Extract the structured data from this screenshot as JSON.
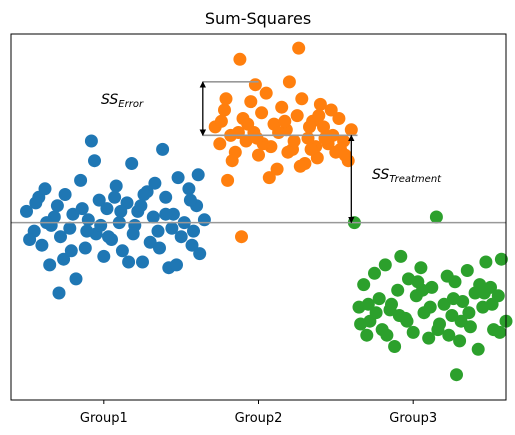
{
  "chart_data": {
    "type": "scatter",
    "title": "Sum-Squares",
    "xlabel": "",
    "ylabel": "",
    "categories": [
      "Group1",
      "Group2",
      "Group3"
    ],
    "xlim": [
      0.4,
      3.6
    ],
    "ylim": [
      -6.3,
      6.7
    ],
    "grid": false,
    "grand_mean": 0,
    "annotations": {
      "ss_error": {
        "base": "SS",
        "sub": "Error"
      },
      "ss_treatment": {
        "base": "SS",
        "sub": "Treatment"
      }
    },
    "annotation_values": {
      "group2_mean": 3.1,
      "error_point": 5.0,
      "error_arrow_x": 1.64,
      "treatment_arrow_x": 2.6
    },
    "series": [
      {
        "name": "Group1",
        "color": "#1f77b4",
        "points": [
          [
            0.5,
            0.4
          ],
          [
            0.55,
            -0.3
          ],
          [
            0.6,
            -0.8
          ],
          [
            0.58,
            0.9
          ],
          [
            0.62,
            1.2
          ],
          [
            0.65,
            -1.5
          ],
          [
            0.68,
            0.2
          ],
          [
            0.7,
            0.6
          ],
          [
            0.72,
            -0.5
          ],
          [
            0.75,
            1.0
          ],
          [
            0.78,
            -0.2
          ],
          [
            0.8,
            0.3
          ],
          [
            0.82,
            -2.0
          ],
          [
            0.85,
            1.5
          ],
          [
            0.88,
            -0.9
          ],
          [
            0.9,
            0.1
          ],
          [
            0.92,
            2.9
          ],
          [
            0.95,
            -0.4
          ],
          [
            0.97,
            0.8
          ],
          [
            1.0,
            -1.2
          ],
          [
            1.02,
            0.5
          ],
          [
            1.05,
            -0.6
          ],
          [
            1.08,
            1.3
          ],
          [
            1.1,
            0.0
          ],
          [
            1.12,
            -1.0
          ],
          [
            1.15,
            0.7
          ],
          [
            1.18,
            2.1
          ],
          [
            1.2,
            -0.1
          ],
          [
            1.22,
            0.4
          ],
          [
            1.25,
            -1.4
          ],
          [
            1.28,
            1.1
          ],
          [
            1.3,
            -0.7
          ],
          [
            1.32,
            0.2
          ],
          [
            1.35,
            -0.3
          ],
          [
            1.38,
            2.6
          ],
          [
            1.4,
            0.9
          ],
          [
            1.42,
            -1.6
          ],
          [
            1.45,
            0.3
          ],
          [
            1.48,
            1.6
          ],
          [
            1.5,
            -0.5
          ],
          [
            1.52,
            0.0
          ],
          [
            1.55,
            1.2
          ],
          [
            1.57,
            -0.8
          ],
          [
            1.6,
            0.6
          ],
          [
            1.62,
            -1.1
          ],
          [
            1.65,
            0.1
          ],
          [
            0.52,
            -0.6
          ],
          [
            0.63,
            0.0
          ],
          [
            0.74,
            -1.3
          ],
          [
            0.86,
            0.5
          ],
          [
            0.98,
            -0.1
          ],
          [
            1.07,
            0.9
          ],
          [
            1.19,
            -0.4
          ],
          [
            1.33,
            1.4
          ],
          [
            1.44,
            -0.2
          ],
          [
            1.56,
            0.8
          ],
          [
            0.66,
            -0.1
          ],
          [
            0.89,
            -0.3
          ],
          [
            1.11,
            0.4
          ],
          [
            1.36,
            -0.9
          ],
          [
            1.58,
            -0.3
          ],
          [
            0.71,
            -2.5
          ],
          [
            0.94,
            2.2
          ],
          [
            1.16,
            -1.4
          ],
          [
            1.26,
            1.0
          ],
          [
            1.47,
            -1.5
          ],
          [
            1.61,
            1.7
          ],
          [
            0.56,
            0.7
          ],
          [
            0.79,
            -1.0
          ],
          [
            1.03,
            -0.5
          ],
          [
            1.24,
            0.6
          ],
          [
            1.4,
            0.3
          ]
        ]
      },
      {
        "name": "Group2",
        "color": "#ff7f0e",
        "points": [
          [
            1.72,
            3.4
          ],
          [
            1.75,
            2.8
          ],
          [
            1.78,
            4.0
          ],
          [
            1.8,
            1.5
          ],
          [
            1.82,
            3.1
          ],
          [
            1.85,
            2.5
          ],
          [
            1.88,
            5.8
          ],
          [
            1.9,
            3.7
          ],
          [
            1.92,
            2.9
          ],
          [
            1.95,
            4.3
          ],
          [
            1.97,
            3.2
          ],
          [
            2.0,
            2.4
          ],
          [
            2.02,
            3.9
          ],
          [
            2.05,
            4.6
          ],
          [
            2.08,
            2.7
          ],
          [
            2.1,
            3.5
          ],
          [
            2.12,
            1.9
          ],
          [
            2.15,
            4.1
          ],
          [
            2.18,
            3.3
          ],
          [
            2.2,
            5.0
          ],
          [
            2.22,
            2.6
          ],
          [
            2.25,
            3.8
          ],
          [
            2.28,
            4.4
          ],
          [
            2.3,
            2.1
          ],
          [
            2.32,
            3.0
          ],
          [
            2.35,
            3.6
          ],
          [
            2.38,
            2.3
          ],
          [
            2.4,
            4.2
          ],
          [
            2.42,
            3.4
          ],
          [
            2.45,
            2.8
          ],
          [
            2.48,
            3.1
          ],
          [
            2.5,
            2.5
          ],
          [
            2.52,
            3.7
          ],
          [
            2.55,
            2.9
          ],
          [
            2.58,
            2.2
          ],
          [
            2.6,
            3.3
          ],
          [
            1.76,
            3.6
          ],
          [
            1.83,
            2.2
          ],
          [
            1.93,
            3.5
          ],
          [
            2.03,
            2.8
          ],
          [
            2.13,
            3.2
          ],
          [
            2.23,
            2.9
          ],
          [
            2.33,
            3.4
          ],
          [
            2.43,
            3.0
          ],
          [
            2.53,
            2.6
          ],
          [
            1.79,
            4.4
          ],
          [
            1.99,
            3.0
          ],
          [
            2.19,
            2.5
          ],
          [
            2.39,
            3.8
          ],
          [
            2.07,
            1.6
          ],
          [
            2.27,
            2.0
          ],
          [
            2.47,
            4.0
          ],
          [
            1.87,
            3.2
          ],
          [
            2.17,
            3.6
          ],
          [
            2.37,
            2.7
          ],
          [
            2.56,
            2.4
          ],
          [
            1.98,
            4.9
          ],
          [
            2.26,
            6.2
          ],
          [
            1.89,
            -0.5
          ],
          [
            2.34,
            2.6
          ]
        ]
      },
      {
        "name": "Group3",
        "color": "#2ca02c",
        "points": [
          [
            2.62,
            0.0
          ],
          [
            2.65,
            -3.0
          ],
          [
            2.68,
            -2.2
          ],
          [
            2.7,
            -4.0
          ],
          [
            2.72,
            -3.5
          ],
          [
            2.75,
            -1.8
          ],
          [
            2.78,
            -2.7
          ],
          [
            2.8,
            -3.8
          ],
          [
            2.82,
            -1.5
          ],
          [
            2.85,
            -3.1
          ],
          [
            2.88,
            -4.4
          ],
          [
            2.9,
            -2.4
          ],
          [
            2.92,
            -1.2
          ],
          [
            2.95,
            -3.4
          ],
          [
            2.97,
            -2.0
          ],
          [
            3.0,
            -3.9
          ],
          [
            3.02,
            -2.6
          ],
          [
            3.05,
            -1.6
          ],
          [
            3.07,
            -3.2
          ],
          [
            3.1,
            -4.1
          ],
          [
            3.12,
            -2.3
          ],
          [
            3.15,
            0.2
          ],
          [
            3.17,
            -3.6
          ],
          [
            3.2,
            -2.9
          ],
          [
            3.22,
            -1.9
          ],
          [
            3.25,
            -3.3
          ],
          [
            3.27,
            -2.1
          ],
          [
            3.3,
            -4.2
          ],
          [
            3.32,
            -2.8
          ],
          [
            3.35,
            -1.7
          ],
          [
            3.37,
            -3.7
          ],
          [
            3.4,
            -2.5
          ],
          [
            3.42,
            -4.5
          ],
          [
            3.45,
            -3.0
          ],
          [
            3.47,
            -1.4
          ],
          [
            3.5,
            -2.3
          ],
          [
            3.52,
            -3.8
          ],
          [
            3.55,
            -2.6
          ],
          [
            3.57,
            -1.3
          ],
          [
            3.6,
            -3.5
          ],
          [
            2.66,
            -3.6
          ],
          [
            2.76,
            -3.2
          ],
          [
            2.86,
            -2.9
          ],
          [
            2.96,
            -3.5
          ],
          [
            3.06,
            -2.4
          ],
          [
            3.16,
            -3.8
          ],
          [
            3.26,
            -2.7
          ],
          [
            3.36,
            -3.2
          ],
          [
            3.46,
            -2.5
          ],
          [
            3.56,
            -3.9
          ],
          [
            2.71,
            -2.9
          ],
          [
            2.91,
            -3.3
          ],
          [
            3.11,
            -3.0
          ],
          [
            3.31,
            -3.5
          ],
          [
            3.51,
            -2.9
          ],
          [
            2.83,
            -4.0
          ],
          [
            3.03,
            -2.1
          ],
          [
            3.23,
            -4.0
          ],
          [
            3.43,
            -2.2
          ],
          [
            3.28,
            -5.4
          ]
        ]
      }
    ]
  }
}
